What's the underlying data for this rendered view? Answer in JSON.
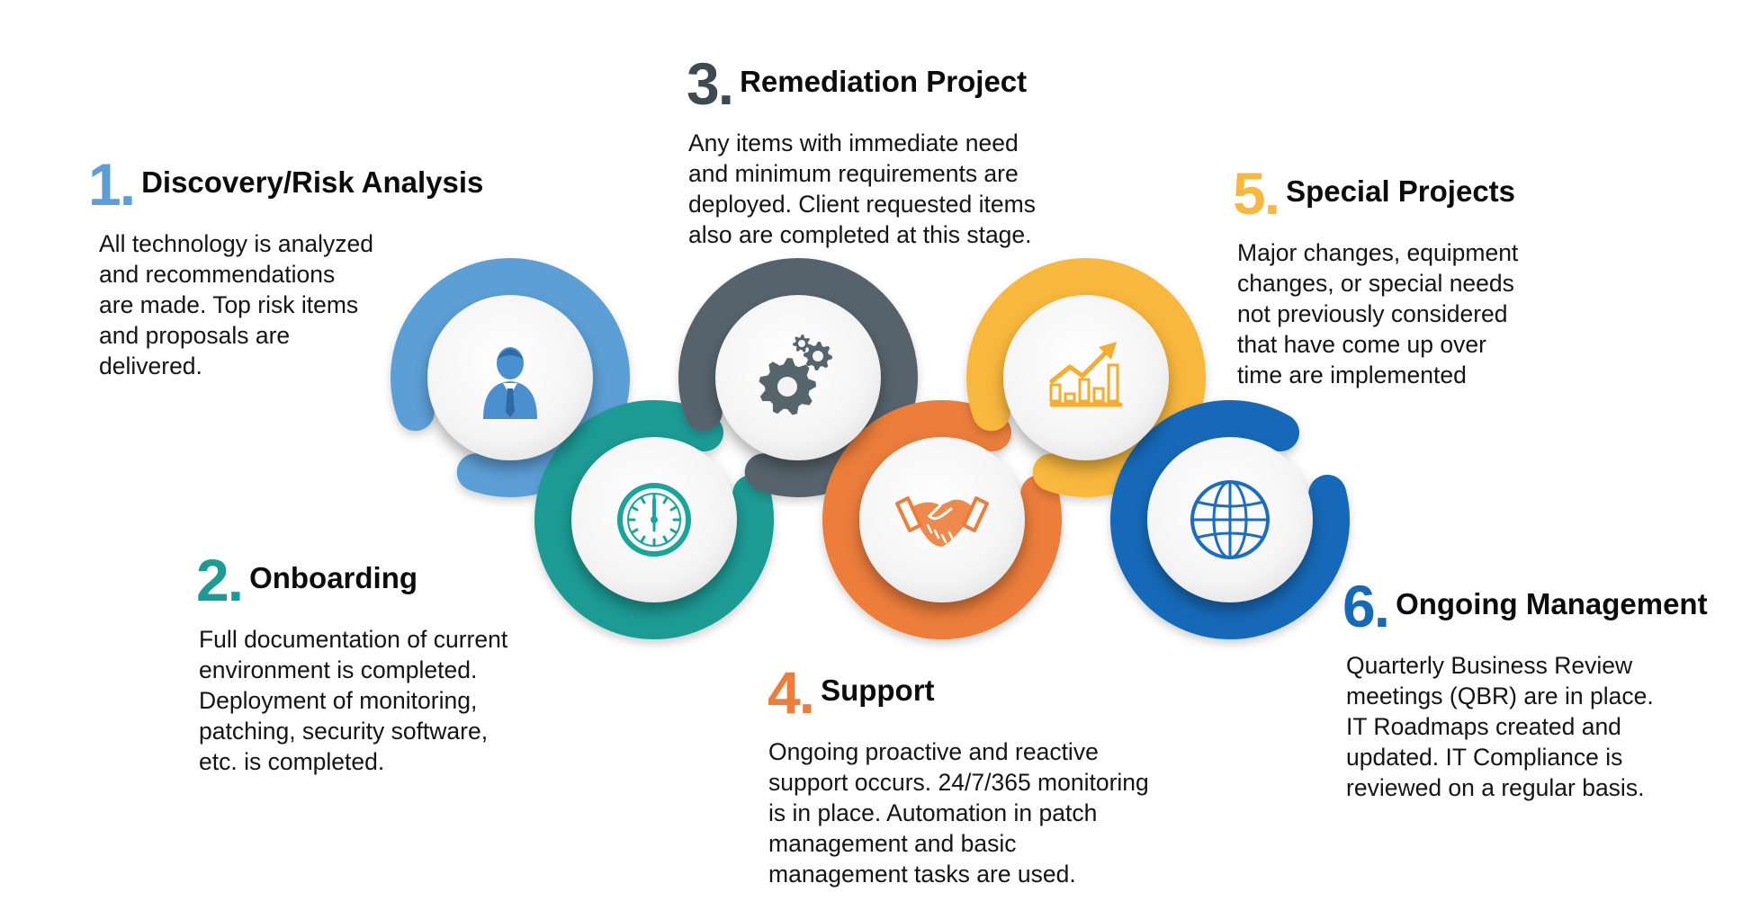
{
  "colors": {
    "step1": "#5b9fd6",
    "step2": "#1c9b94",
    "step3": "#56646c",
    "step4": "#ec7d3a",
    "step5": "#f8b73e",
    "step6": "#1469b8",
    "number3": "#3e4a52",
    "icon1": "#4a8fd0",
    "icon2": "#1aa59c",
    "icon3": "#56646c",
    "icon4": "#ec7d3a",
    "icon5": "#f6ad2b",
    "icon6": "#1a6dc0"
  },
  "steps": [
    {
      "number": "1",
      "title": "Discovery/Risk Analysis",
      "description": "All technology is analyzed\nand recommendations\nare made. Top risk items\nand proposals are\ndelivered.",
      "icon": "businessman-icon"
    },
    {
      "number": "2",
      "title": "Onboarding",
      "description": "Full documentation of current\nenvironment is completed.\nDeployment of monitoring,\npatching, security software,\netc. is completed.",
      "icon": "clock-icon"
    },
    {
      "number": "3",
      "title": "Remediation Project",
      "description": "Any items with immediate need\nand minimum requirements are\ndeployed. Client requested items\nalso are completed at this stage.",
      "icon": "gears-icon"
    },
    {
      "number": "4",
      "title": "Support",
      "description": "Ongoing proactive and reactive\nsupport occurs. 24/7/365 monitoring\nis in place. Automation in patch\nmanagement and basic\nmanagement tasks are used.",
      "icon": "handshake-icon"
    },
    {
      "number": "5",
      "title": "Special Projects",
      "description": "Major changes, equipment\nchanges, or special needs\nnot previously considered\nthat have come up over\ntime are implemented",
      "icon": "growth-chart-icon"
    },
    {
      "number": "6",
      "title": "Ongoing Management",
      "description": "Quarterly Business Review\nmeetings (QBR) are in place.\nIT Roadmaps created and\nupdated. IT Compliance is\nreviewed on a regular basis.",
      "icon": "globe-icon"
    }
  ]
}
